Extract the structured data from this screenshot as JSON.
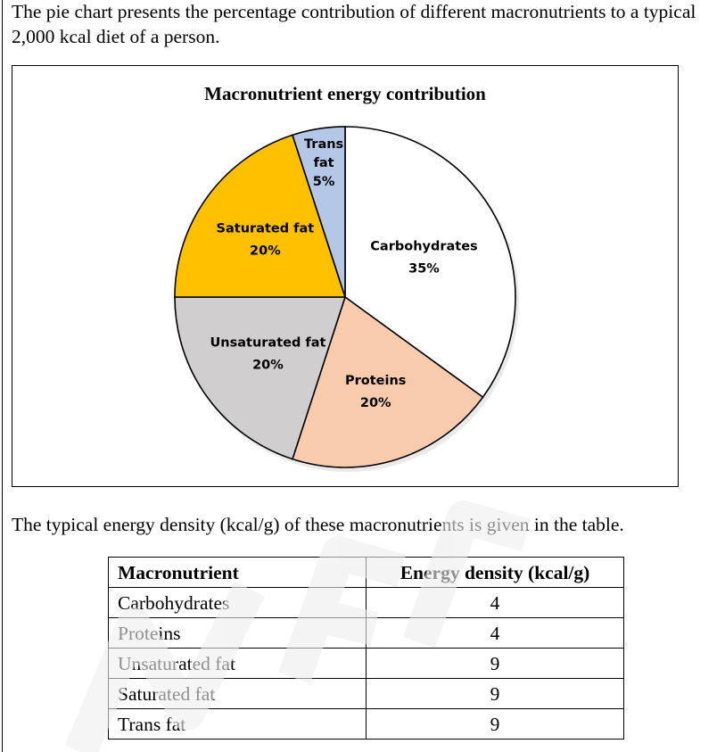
{
  "intro_text": "The pie chart presents the percentage contribution of different macronutrients to a typical 2,000 kcal diet of a person.",
  "table_intro_text": "The typical energy density (kcal/g) of these macronutrients is given in the table.",
  "chart_data": {
    "type": "pie",
    "title": "Macronutrient energy contribution",
    "slices": [
      {
        "name": "Carbohydrates",
        "value": 35,
        "label_lines": [
          "Carbohydrates",
          "35%"
        ],
        "color": "#ffffff"
      },
      {
        "name": "Proteins",
        "value": 20,
        "label_lines": [
          "Proteins",
          "20%"
        ],
        "color": "#f8cbad"
      },
      {
        "name": "Unsaturated fat",
        "value": 20,
        "label_lines": [
          "Unsaturated fat",
          "20%"
        ],
        "color": "#d0cece"
      },
      {
        "name": "Saturated fat",
        "value": 20,
        "label_lines": [
          "Saturated fat",
          "20%"
        ],
        "color": "#ffc000"
      },
      {
        "name": "Trans fat",
        "value": 5,
        "label_lines": [
          "Trans",
          "fat",
          "5%"
        ],
        "color": "#b4c7e7"
      }
    ],
    "start_angle_deg": 0,
    "direction": "clockwise",
    "legend": "none"
  },
  "table": {
    "headers": [
      "Macronutrient",
      "Energy density (kcal/g)"
    ],
    "rows": [
      [
        "Carbohydrates",
        "4"
      ],
      [
        "Proteins",
        "4"
      ],
      [
        "Unsaturated fat",
        "9"
      ],
      [
        "Saturated fat",
        "9"
      ],
      [
        "Trans fat",
        "9"
      ]
    ]
  }
}
